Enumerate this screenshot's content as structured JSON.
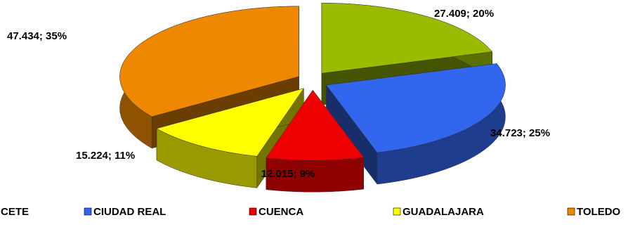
{
  "chart_data": {
    "type": "pie3d",
    "categories": [
      "CETE",
      "CIUDAD REAL",
      "CUENCA",
      "GUADALAJARA",
      "TOLEDO"
    ],
    "values": [
      27409,
      34723,
      12015,
      15224,
      47434
    ],
    "value_labels": [
      "27.409; 20%",
      "34.723; 25%",
      "12.015; 9%",
      "15.224; 11%",
      "47.434; 35%"
    ],
    "colors": [
      "#99bb00",
      "#3366ee",
      "#ee0000",
      "#ffff00",
      "#ee8800"
    ],
    "legend": "bottom"
  }
}
